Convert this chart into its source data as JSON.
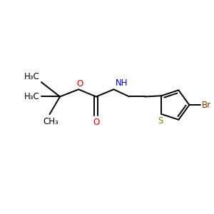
{
  "background_color": "#ffffff",
  "bond_color": "#000000",
  "o_color": "#cc0000",
  "n_color": "#0000cc",
  "s_color": "#808000",
  "br_color": "#7a3300",
  "figsize": [
    3.0,
    3.0
  ],
  "dpi": 100,
  "xlim": [
    0,
    10
  ],
  "ylim": [
    0,
    10
  ]
}
